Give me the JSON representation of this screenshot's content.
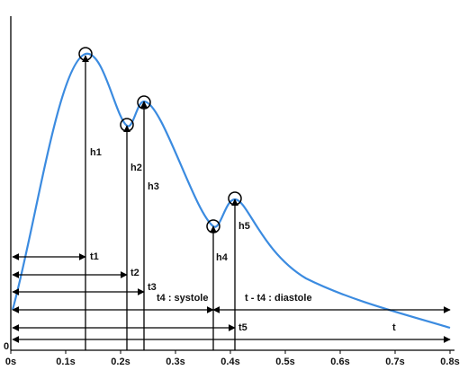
{
  "axis": {
    "origin": "0",
    "ticks": [
      "0s",
      "0.1s",
      "0.2s",
      "0.3s",
      "0.4s",
      "0.5s",
      "0.6s",
      "0.7s",
      "0.8s"
    ]
  },
  "heights": [
    "h1",
    "h2",
    "h3",
    "h4",
    "h5"
  ],
  "intervals": [
    "t1",
    "t2",
    "t3",
    "t4 : systole",
    "t - t4 : diastole",
    "t5",
    "t"
  ]
}
